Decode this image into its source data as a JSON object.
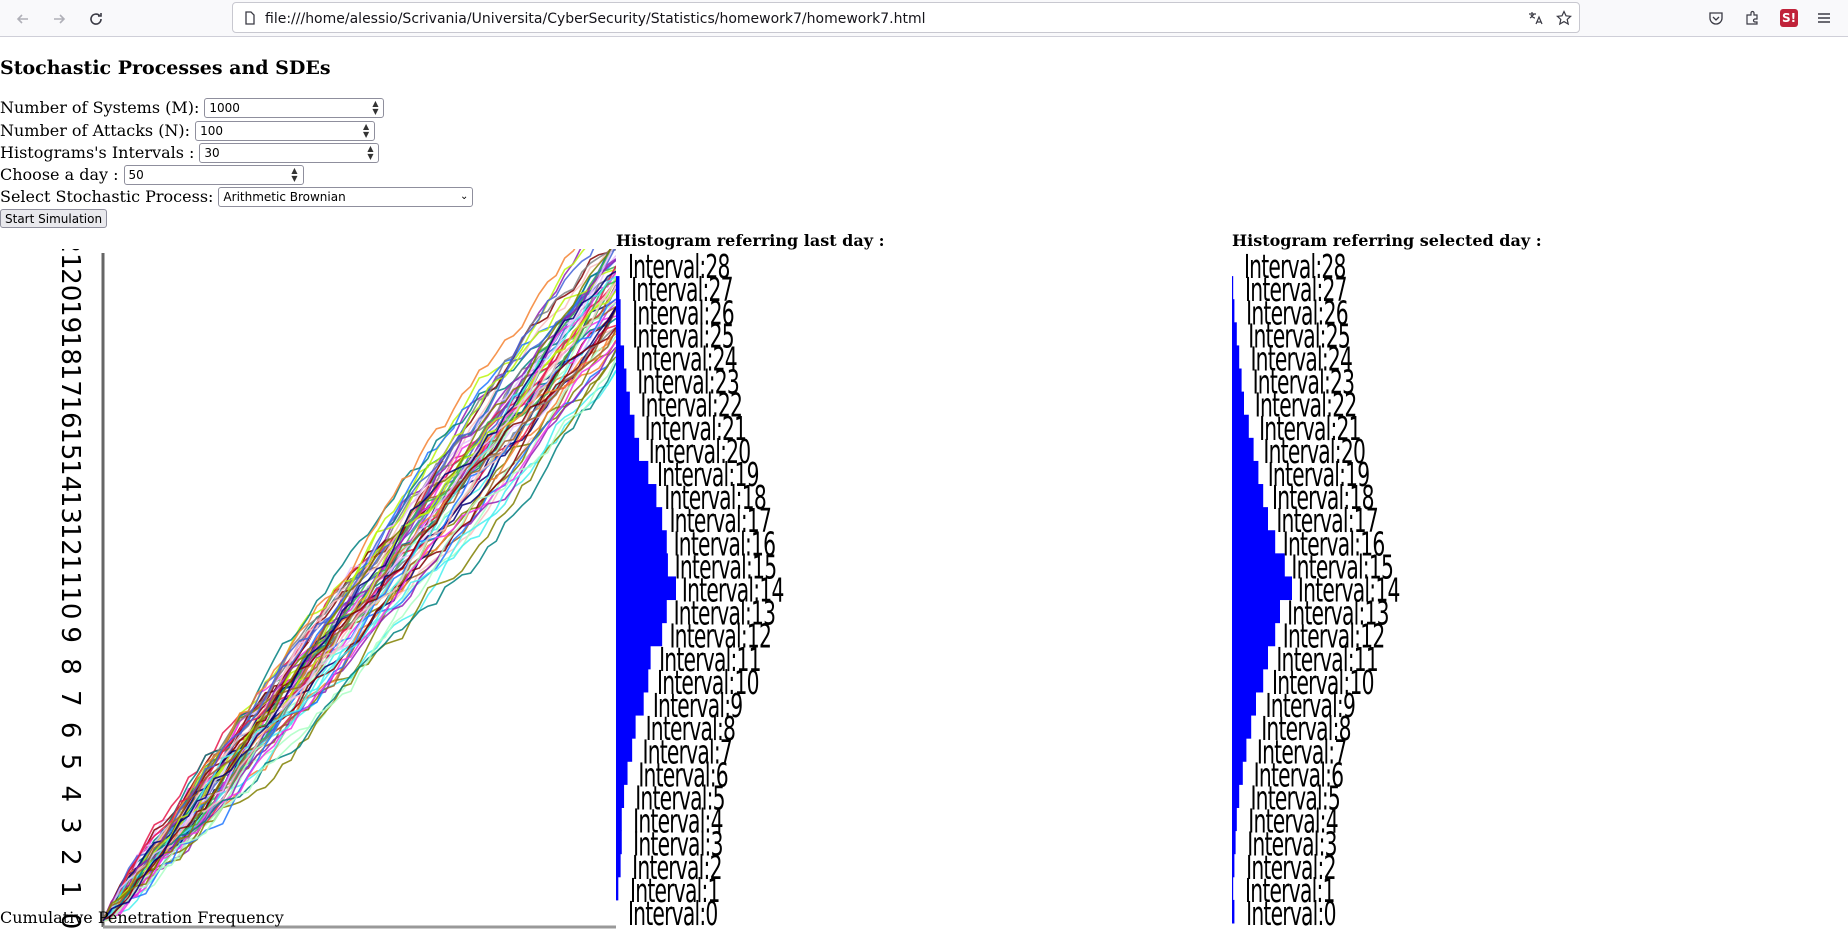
{
  "browser": {
    "url": "file:///home/alessio/Scrivania/Universita/CyberSecurity/Statistics/homework7/homework7.html"
  },
  "page": {
    "title": "Stochastic Processes and SDEs",
    "fields": {
      "systems": {
        "label": "Number of Systems (M):",
        "value": "1000"
      },
      "attacks": {
        "label": "Number of Attacks (N):",
        "value": "100"
      },
      "intervals": {
        "label": "Histograms's Intervals :",
        "value": "30"
      },
      "day": {
        "label": "Choose a day :",
        "value": "50"
      },
      "process": {
        "label": "Select Stochastic Process:",
        "value": "Arithmetic Brownian"
      }
    },
    "start_button": "Start Simulation",
    "hist_last_title": "Histogram referring last day :",
    "hist_selected_title": "Histogram referring selected day :",
    "footer_label": "Cumulative Penetration Frequency"
  },
  "chart_data": [
    {
      "type": "line",
      "ylabel": "Cumulative Penetration Frequency",
      "y_ticks": [
        "0",
        "1",
        "2",
        "3",
        "4",
        "5",
        "6",
        "7",
        "8",
        "9",
        "10",
        "11",
        "12",
        "13",
        "14",
        "15",
        "16",
        "17",
        "18",
        "19",
        "20",
        "21"
      ],
      "description_series": "many overlapping random walk paths rising from 0 to about 20",
      "colors": [
        "#e6194b",
        "#3cb44b",
        "#4363d8",
        "#f58231",
        "#911eb4",
        "#46f0f0",
        "#f032e6",
        "#bcf60c",
        "#fabebe",
        "#008080",
        "#e6beff",
        "#9a6324",
        "#800000",
        "#aaffc3",
        "#808000",
        "#000075",
        "#808080",
        "#1f77ff"
      ]
    },
    {
      "type": "bar",
      "title": "Histogram referring last day :",
      "orientation": "horizontal",
      "categories": [
        "Interval:28",
        "Interval:27",
        "Interval:26",
        "Interval:25",
        "Interval:24",
        "Interval:23",
        "Interval:22",
        "Interval:21",
        "Interval:20",
        "Interval:19",
        "Interval:18",
        "Interval:17",
        "Interval:16",
        "Interval:15",
        "Interval:14",
        "Interval:13",
        "Interval:12",
        "Interval:11",
        "Interval:10",
        "Interval:9",
        "Interval:8",
        "Interval:7",
        "Interval:6",
        "Interval:5",
        "Interval:4",
        "Interval:3",
        "Interval:2",
        "Interval:1",
        "Interval:0"
      ],
      "values": [
        0,
        3,
        4,
        4,
        7,
        9,
        12,
        16,
        20,
        28,
        35,
        40,
        44,
        45,
        52,
        44,
        40,
        30,
        28,
        24,
        17,
        14,
        10,
        7,
        5,
        5,
        4,
        2,
        0
      ],
      "color": "#0000ff"
    },
    {
      "type": "bar",
      "title": "Histogram referring selected day :",
      "orientation": "horizontal",
      "categories": [
        "Interval:28",
        "Interval:27",
        "Interval:26",
        "Interval:25",
        "Interval:24",
        "Interval:23",
        "Interval:22",
        "Interval:21",
        "Interval:20",
        "Interval:19",
        "Interval:18",
        "Interval:17",
        "Interval:16",
        "Interval:15",
        "Interval:14",
        "Interval:13",
        "Interval:12",
        "Interval:11",
        "Interval:10",
        "Interval:9",
        "Interval:8",
        "Interval:7",
        "Interval:6",
        "Interval:5",
        "Interval:4",
        "Interval:3",
        "Interval:2",
        "Interval:1",
        "Interval:0"
      ],
      "values": [
        0,
        1,
        2,
        4,
        6,
        8,
        10,
        14,
        18,
        22,
        26,
        30,
        36,
        44,
        50,
        40,
        36,
        30,
        26,
        20,
        16,
        12,
        9,
        6,
        4,
        3,
        2,
        1,
        2
      ],
      "color": "#0000ff"
    }
  ]
}
